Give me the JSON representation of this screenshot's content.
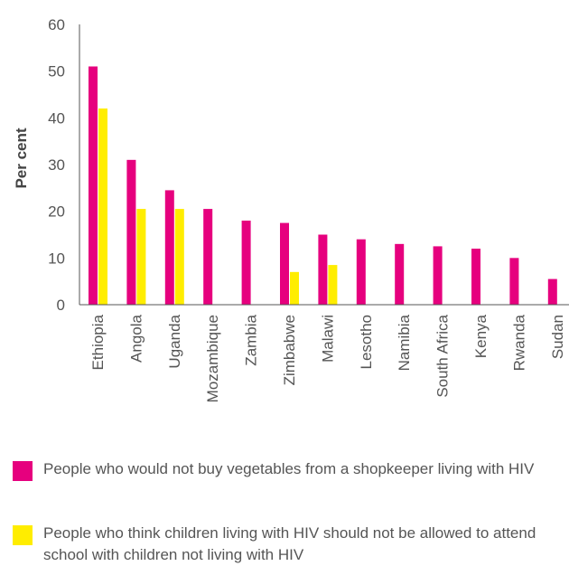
{
  "chart_data": {
    "type": "bar",
    "ylabel": "Per cent",
    "ylim": [
      0,
      60
    ],
    "yticks": [
      0,
      10,
      20,
      30,
      40,
      50,
      60
    ],
    "grid": false,
    "legend_position": "bottom",
    "categories": [
      "Ethiopia",
      "Angola",
      "Uganda",
      "Mozambique",
      "Zambia",
      "Zimbabwe",
      "Malawi",
      "Lesotho",
      "Namibia",
      "South Africa",
      "Kenya",
      "Rwanda",
      "Sudan"
    ],
    "series": [
      {
        "name": "People who would not buy vegetables from a shopkeeper living with HIV",
        "color": "#e6007e",
        "values": [
          51,
          31,
          24.5,
          20.5,
          18,
          17.5,
          15,
          14,
          13,
          12.5,
          12,
          10,
          5.5
        ]
      },
      {
        "name": "People who think children living with HIV should not be allowed to attend school with children not living with HIV",
        "color": "#ffed00",
        "values": [
          42,
          20.5,
          20.5,
          null,
          null,
          7,
          8.5,
          null,
          null,
          null,
          null,
          null,
          null
        ]
      }
    ]
  }
}
